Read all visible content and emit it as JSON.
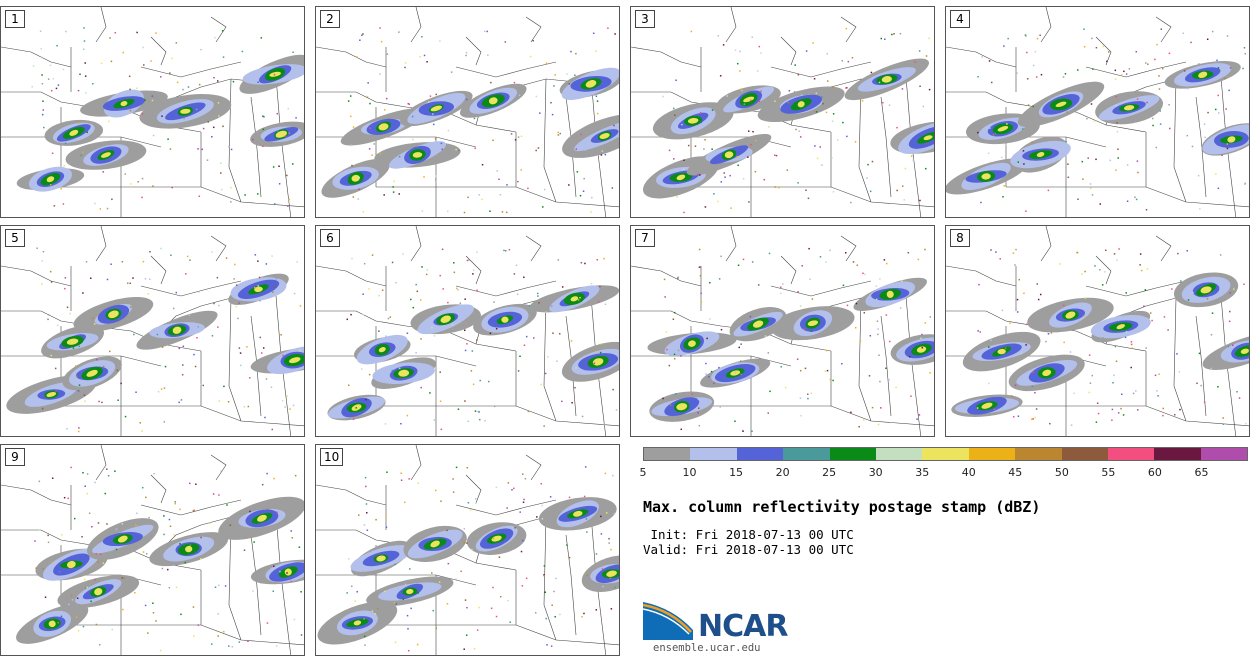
{
  "panels": [
    {
      "label": "1"
    },
    {
      "label": "2"
    },
    {
      "label": "3"
    },
    {
      "label": "4"
    },
    {
      "label": "5"
    },
    {
      "label": "6"
    },
    {
      "label": "7"
    },
    {
      "label": "8"
    },
    {
      "label": "9"
    },
    {
      "label": "10"
    }
  ],
  "colorbar": {
    "colors": [
      "#9e9e9e",
      "#b4c0ec",
      "#5563d8",
      "#4a9a9c",
      "#0a8a16",
      "#c4dfbf",
      "#ece45e",
      "#edb118",
      "#bb8630",
      "#8e5a3c",
      "#f24f80",
      "#6b1840",
      "#b04cac"
    ],
    "ticks": [
      "5",
      "10",
      "15",
      "20",
      "25",
      "30",
      "35",
      "40",
      "45",
      "50",
      "55",
      "60",
      "65"
    ]
  },
  "title": "Max. column reflectivity postage stamp (dBZ)",
  "init": " Init: Fri 2018-07-13 00 UTC",
  "valid": "Valid: Fri 2018-07-13 00 UTC",
  "logo": {
    "name": "NCAR",
    "url": "ensemble.ucar.edu"
  }
}
